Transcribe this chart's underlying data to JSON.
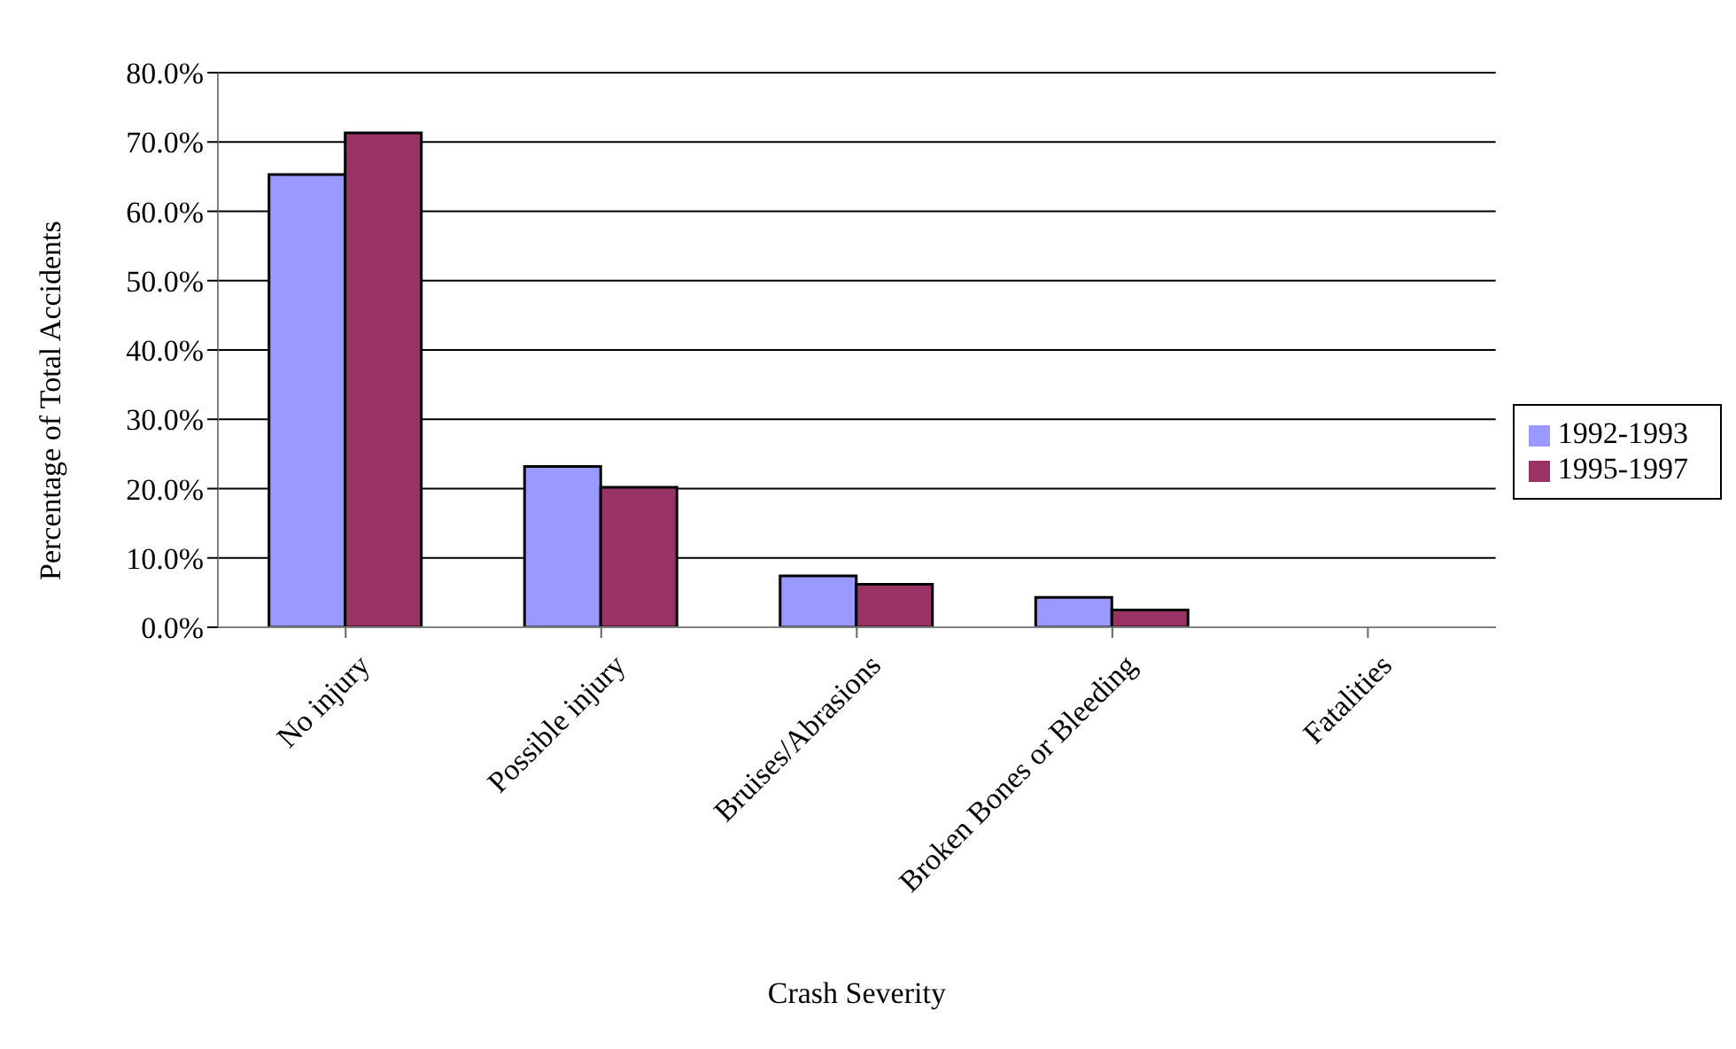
{
  "chart_data": {
    "type": "bar",
    "xlabel": "Crash Severity",
    "ylabel": "Percentage of Total Accidents",
    "categories": [
      "No injury",
      "Possible injury",
      "Bruises/Abrasions",
      "Broken Bones or Bleeding",
      "Fatalities"
    ],
    "series": [
      {
        "name": "1992-1993",
        "color": "#9999ff",
        "values": [
          65.3,
          23.2,
          7.4,
          4.3,
          0
        ]
      },
      {
        "name": "1995-1997",
        "color": "#993366",
        "values": [
          71.3,
          20.2,
          6.2,
          2.5,
          0
        ]
      }
    ],
    "ylim": [
      0,
      80
    ],
    "yticks": [
      {
        "value": 0,
        "label": "0.0%"
      },
      {
        "value": 10,
        "label": "10.0%"
      },
      {
        "value": 20,
        "label": "20.0%"
      },
      {
        "value": 30,
        "label": "30.0%"
      },
      {
        "value": 40,
        "label": "40.0%"
      },
      {
        "value": 50,
        "label": "50.0%"
      },
      {
        "value": 60,
        "label": "60.0%"
      },
      {
        "value": 70,
        "label": "70.0%"
      },
      {
        "value": 80,
        "label": "80.0%"
      }
    ],
    "grid": "y",
    "legend": "right"
  }
}
